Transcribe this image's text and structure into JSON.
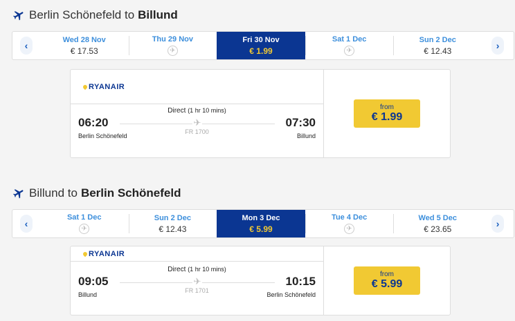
{
  "colors": {
    "brand_blue": "#0b3692",
    "yellow": "#f1c933",
    "date_link": "#3d8fdc"
  },
  "sections": [
    {
      "title_prefix": "Berlin Schönefeld to",
      "title_dest": "Billund",
      "dates": [
        {
          "date": "Wed 28 Nov",
          "price": "€ 17.53"
        },
        {
          "date": "Thu 29 Nov",
          "price": null,
          "icon": "no-flight-icon"
        },
        {
          "date": "Fri 30 Nov",
          "price": "€ 1.99",
          "selected": true
        },
        {
          "date": "Sat 1 Dec",
          "price": null,
          "icon": "no-flight-icon"
        },
        {
          "date": "Sun 2 Dec",
          "price": "€ 12.43"
        }
      ],
      "flight": {
        "airline": "RYANAIR",
        "direct": "Direct",
        "duration": "(1 hr 10 mins)",
        "depart_time": "06:20",
        "depart_city": "Berlin Schönefeld",
        "arrive_time": "07:30",
        "arrive_city": "Billund",
        "flight_no": "FR 1700",
        "from_label": "from",
        "price": "€ 1.99"
      }
    },
    {
      "title_prefix": "Billund to",
      "title_dest": "Berlin Schönefeld",
      "dates": [
        {
          "date": "Sat 1 Dec",
          "price": null,
          "icon": "no-flight-icon"
        },
        {
          "date": "Sun 2 Dec",
          "price": "€ 12.43"
        },
        {
          "date": "Mon 3 Dec",
          "price": "€ 5.99",
          "selected": true
        },
        {
          "date": "Tue 4 Dec",
          "price": null,
          "icon": "no-flight-icon"
        },
        {
          "date": "Wed 5 Dec",
          "price": "€ 23.65"
        }
      ],
      "flight": {
        "airline": "RYANAIR",
        "direct": "Direct",
        "duration": "(1 hr 10 mins)",
        "depart_time": "09:05",
        "depart_city": "Billund",
        "arrive_time": "10:15",
        "arrive_city": "Berlin Schönefeld",
        "flight_no": "FR 1701",
        "from_label": "from",
        "price": "€ 5.99"
      }
    }
  ]
}
